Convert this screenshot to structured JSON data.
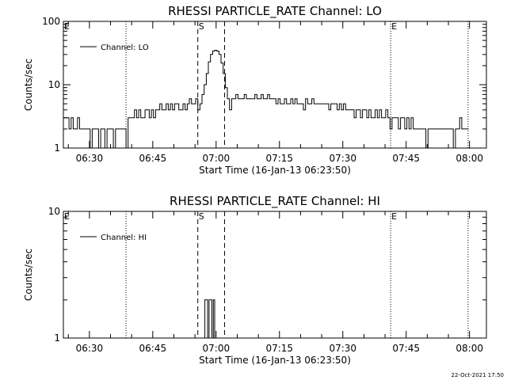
{
  "chart_data": [
    {
      "type": "line",
      "title": "RHESSI PARTICLE_RATE Channel: LO",
      "xlabel": "Start Time (16-Jan-13 06:23:50)",
      "ylabel": "Counts/sec",
      "yscale": "log",
      "ylim": [
        1,
        100
      ],
      "xlim": [
        "06:23:50",
        "08:04:00"
      ],
      "xticks": [
        "06:30",
        "06:45",
        "07:00",
        "07:15",
        "07:30",
        "07:45",
        "08:00"
      ],
      "yticks": [
        "1",
        "10",
        "100"
      ],
      "legend": {
        "position": "top-left",
        "entries": [
          "Channel: LO"
        ]
      },
      "markers": [
        {
          "label": "E",
          "x": "06:23:50",
          "style": "none"
        },
        {
          "label": "",
          "x": "06:38:40",
          "style": "dotted"
        },
        {
          "label": "S",
          "x": "06:55:40",
          "style": "dashed"
        },
        {
          "label": "",
          "x": "07:02:00",
          "style": "dashed"
        },
        {
          "label": "E",
          "x": "07:41:20",
          "style": "dotted"
        },
        {
          "label": "",
          "x": "07:59:40",
          "style": "dotted"
        }
      ],
      "series": [
        {
          "x": [
            "06:23:50",
            "06:24:40",
            "06:25:10",
            "06:25:40",
            "06:26:10",
            "06:26:40",
            "06:27:10",
            "06:27:40",
            "06:28:10",
            "06:28:40",
            "06:29:10",
            "06:29:40",
            "06:30:10",
            "06:30:40",
            "06:31:10",
            "06:31:40",
            "06:32:10",
            "06:32:40",
            "06:33:10",
            "06:33:40",
            "06:34:10",
            "06:34:40",
            "06:35:10",
            "06:35:40",
            "06:36:10",
            "06:36:40",
            "06:37:10",
            "06:37:40",
            "06:38:10",
            "06:38:40",
            "06:39:10",
            "06:39:40",
            "06:40:10",
            "06:40:40",
            "06:41:10",
            "06:41:40",
            "06:42:10",
            "06:42:40",
            "06:43:10",
            "06:43:40",
            "06:44:10",
            "06:44:40",
            "06:45:10",
            "06:45:40",
            "06:46:10",
            "06:46:40",
            "06:47:10",
            "06:47:40",
            "06:48:10",
            "06:48:40",
            "06:49:10",
            "06:49:40",
            "06:50:10",
            "06:50:40",
            "06:51:10",
            "06:51:40",
            "06:52:10",
            "06:52:40",
            "06:53:10",
            "06:53:40",
            "06:54:10",
            "06:54:40",
            "06:55:10",
            "06:55:40",
            "06:56:10",
            "06:56:40",
            "06:57:10",
            "06:57:40",
            "06:58:10",
            "06:58:40",
            "06:59:10",
            "06:59:40",
            "07:00:10",
            "07:00:40",
            "07:01:10",
            "07:01:40",
            "07:02:10",
            "07:02:40",
            "07:03:10",
            "07:03:40",
            "07:04:10",
            "07:04:40",
            "07:05:10",
            "07:05:40",
            "07:06:10",
            "07:06:40",
            "07:07:10",
            "07:07:40",
            "07:08:10",
            "07:08:40",
            "07:09:10",
            "07:09:40",
            "07:10:10",
            "07:10:40",
            "07:11:10",
            "07:11:40",
            "07:12:10",
            "07:12:40",
            "07:13:10",
            "07:13:40",
            "07:14:10",
            "07:14:40",
            "07:15:10",
            "07:15:40",
            "07:16:10",
            "07:16:40",
            "07:17:10",
            "07:17:40",
            "07:18:10",
            "07:18:40",
            "07:19:10",
            "07:19:40",
            "07:20:10",
            "07:20:40",
            "07:21:10",
            "07:21:40",
            "07:22:10",
            "07:22:40",
            "07:23:10",
            "07:23:40",
            "07:24:10",
            "07:24:40",
            "07:25:10",
            "07:25:40",
            "07:26:10",
            "07:26:40",
            "07:27:10",
            "07:27:40",
            "07:28:10",
            "07:28:40",
            "07:29:10",
            "07:29:40",
            "07:30:10",
            "07:30:40",
            "07:31:10",
            "07:31:40",
            "07:32:10",
            "07:32:40",
            "07:33:10",
            "07:33:40",
            "07:34:10",
            "07:34:40",
            "07:35:10",
            "07:35:40",
            "07:36:10",
            "07:36:40",
            "07:37:10",
            "07:37:40",
            "07:38:10",
            "07:38:40",
            "07:39:10",
            "07:39:40",
            "07:40:10",
            "07:40:40",
            "07:41:10",
            "07:41:40",
            "07:42:10",
            "07:42:40",
            "07:43:10",
            "07:43:40",
            "07:44:10",
            "07:44:40",
            "07:45:10",
            "07:45:40",
            "07:46:10",
            "07:46:40",
            "07:47:10",
            "07:47:40",
            "07:48:10",
            "07:48:40",
            "07:49:10",
            "07:49:40",
            "07:50:10",
            "07:50:40",
            "07:51:10",
            "07:51:40",
            "07:52:10",
            "07:52:40",
            "07:53:10",
            "07:53:40",
            "07:54:10",
            "07:54:40",
            "07:55:10",
            "07:55:40",
            "07:56:10",
            "07:56:40",
            "07:57:10",
            "07:57:40",
            "07:58:10",
            "07:58:40",
            "07:59:10"
          ],
          "values": [
            3,
            3,
            2,
            3,
            2,
            2,
            3,
            2,
            2,
            2,
            2,
            2,
            1,
            2,
            2,
            2,
            1,
            2,
            2,
            1,
            2,
            2,
            2,
            1,
            2,
            2,
            2,
            2,
            2,
            1,
            3,
            3,
            3,
            4,
            3,
            4,
            3,
            3,
            4,
            4,
            3,
            4,
            3,
            4,
            4,
            5,
            4,
            4,
            5,
            4,
            5,
            4,
            5,
            5,
            4,
            4,
            5,
            4,
            5,
            6,
            5,
            5,
            6,
            4,
            5,
            7,
            10,
            15,
            23,
            30,
            34,
            35,
            34,
            30,
            22,
            15,
            9,
            6,
            4,
            6,
            6,
            7,
            6,
            6,
            6,
            7,
            6,
            6,
            6,
            6,
            7,
            6,
            6,
            7,
            6,
            6,
            7,
            6,
            6,
            6,
            5,
            6,
            5,
            5,
            6,
            5,
            5,
            6,
            5,
            6,
            5,
            5,
            5,
            4,
            6,
            5,
            5,
            6,
            5,
            5,
            5,
            5,
            5,
            5,
            5,
            4,
            5,
            5,
            5,
            4,
            5,
            4,
            5,
            4,
            4,
            4,
            4,
            3,
            4,
            4,
            3,
            4,
            4,
            3,
            4,
            3,
            3,
            4,
            3,
            4,
            3,
            3,
            4,
            3,
            2,
            3,
            3,
            3,
            2,
            3,
            3,
            2,
            3,
            2,
            3,
            2,
            2,
            2,
            2,
            2,
            2,
            1,
            2,
            2,
            2,
            2,
            2,
            2,
            2,
            2,
            2,
            2,
            2,
            2,
            1,
            2,
            2,
            3,
            2,
            2,
            2
          ]
        }
      ]
    },
    {
      "type": "line",
      "title": "RHESSI PARTICLE_RATE Channel: HI",
      "xlabel": "Start Time (16-Jan-13 06:23:50)",
      "ylabel": "Counts/sec",
      "yscale": "log",
      "ylim": [
        1,
        10
      ],
      "xlim": [
        "06:23:50",
        "08:04:00"
      ],
      "xticks": [
        "06:30",
        "06:45",
        "07:00",
        "07:15",
        "07:30",
        "07:45",
        "08:00"
      ],
      "yticks": [
        "1",
        "10"
      ],
      "legend": {
        "position": "top-left",
        "entries": [
          "Channel: HI"
        ]
      },
      "markers": [
        {
          "label": "E",
          "x": "06:23:50",
          "style": "none"
        },
        {
          "label": "",
          "x": "06:38:40",
          "style": "dotted"
        },
        {
          "label": "S",
          "x": "06:55:40",
          "style": "dashed"
        },
        {
          "label": "",
          "x": "07:02:00",
          "style": "dashed"
        },
        {
          "label": "E",
          "x": "07:41:20",
          "style": "dotted"
        },
        {
          "label": "",
          "x": "07:59:40",
          "style": "dotted"
        }
      ],
      "series": [
        {
          "x": [
            "06:57:00",
            "06:57:20",
            "06:57:40",
            "06:58:00",
            "06:58:20",
            "06:58:40",
            "06:59:00",
            "06:59:20",
            "06:59:40"
          ],
          "values": [
            1,
            2,
            2,
            1,
            2,
            2,
            1,
            2,
            1
          ]
        }
      ]
    }
  ],
  "timestamp": "22-Oct-2021 17:50"
}
